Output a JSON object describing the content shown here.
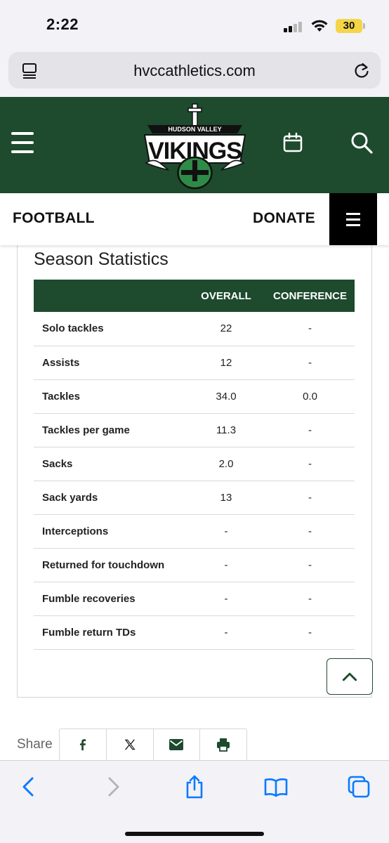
{
  "status_bar": {
    "time": "2:22",
    "battery": "30"
  },
  "browser": {
    "url": "hvccathletics.com"
  },
  "site": {
    "logo_top_text": "HUDSON VALLEY",
    "logo_main_text": "VIKINGS"
  },
  "sub_nav": {
    "sport": "FOOTBALL",
    "donate": "DONATE"
  },
  "stats": {
    "title": "Season Statistics",
    "headers": {
      "stat": "",
      "overall": "OVERALL",
      "conference": "CONFERENCE"
    },
    "rows": [
      {
        "name": "Solo tackles",
        "overall": "22",
        "conference": "-"
      },
      {
        "name": "Assists",
        "overall": "12",
        "conference": "-"
      },
      {
        "name": "Tackles",
        "overall": "34.0",
        "conference": "0.0"
      },
      {
        "name": "Tackles per game",
        "overall": "11.3",
        "conference": "-"
      },
      {
        "name": "Sacks",
        "overall": "2.0",
        "conference": "-"
      },
      {
        "name": "Sack yards",
        "overall": "13",
        "conference": "-"
      },
      {
        "name": "Interceptions",
        "overall": "-",
        "conference": "-"
      },
      {
        "name": "Returned for touchdown",
        "overall": "-",
        "conference": "-"
      },
      {
        "name": "Fumble recoveries",
        "overall": "-",
        "conference": "-"
      },
      {
        "name": "Fumble return TDs",
        "overall": "-",
        "conference": "-"
      }
    ]
  },
  "share": {
    "label": "Share",
    "buttons": [
      "facebook-icon",
      "x-icon",
      "email-icon",
      "print-icon"
    ]
  },
  "colors": {
    "brand_green": "#1e4a2e",
    "ios_blue": "#0a7aff"
  }
}
